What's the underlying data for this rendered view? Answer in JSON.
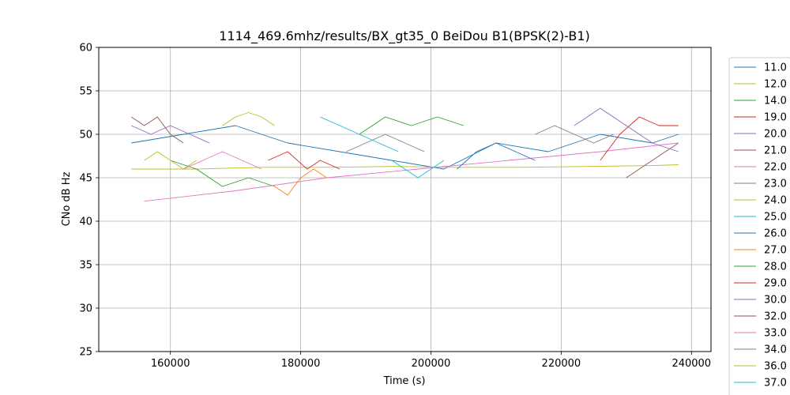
{
  "chart_data": {
    "type": "line",
    "title": "1114_469.6mhz/results/BX_gt35_0 BeiDou B1(BPSK(2)-B1)",
    "xlabel": "Time (s)",
    "ylabel": "CNo dB Hz",
    "xlim": [
      149000,
      243000
    ],
    "ylim": [
      25,
      60
    ],
    "xticks": [
      160000,
      180000,
      200000,
      220000,
      240000
    ],
    "xtick_labels": [
      "160000",
      "180000",
      "200000",
      "220000",
      "240000"
    ],
    "yticks": [
      25,
      30,
      35,
      40,
      45,
      50,
      55,
      60
    ],
    "ytick_labels": [
      "25",
      "30",
      "35",
      "40",
      "45",
      "50",
      "55",
      "60"
    ],
    "grid": true,
    "legend_position": "right, outside plot",
    "series": [
      {
        "name": "11.0",
        "color": "#1f77b4",
        "x": [
          154000,
          162000,
          170000,
          178000,
          186000,
          194000,
          202000,
          210000,
          218000,
          226000,
          234000,
          238000
        ],
        "y": [
          49,
          50,
          51,
          49,
          48,
          47,
          46,
          49,
          48,
          50,
          49,
          50
        ]
      },
      {
        "name": "12.0",
        "color": "#bcbd22",
        "x": [
          154000,
          164000,
          174000,
          184000,
          194000,
          204000,
          214000,
          224000,
          234000,
          238000
        ],
        "y": [
          46,
          46,
          46.2,
          46.2,
          46.3,
          46.2,
          46.2,
          46.3,
          46.4,
          46.5
        ]
      },
      {
        "name": "14.0",
        "color": "#2ca02c",
        "x": [
          160000,
          164000,
          168000,
          172000,
          176000
        ],
        "y": [
          47,
          46,
          44,
          45,
          44
        ]
      },
      {
        "name": "19.0",
        "color": "#d62728",
        "x": [
          175000,
          178000,
          181000,
          183000,
          186000
        ],
        "y": [
          47,
          48,
          46,
          47,
          46
        ]
      },
      {
        "name": "20.0",
        "color": "#9467bd",
        "x": [
          154000,
          157000,
          160000,
          163000,
          166000
        ],
        "y": [
          51,
          50,
          51,
          50,
          49
        ]
      },
      {
        "name": "21.0",
        "color": "#8c564b",
        "x": [
          230000,
          232000,
          234000,
          236000,
          238000
        ],
        "y": [
          45,
          46,
          47,
          48,
          49
        ]
      },
      {
        "name": "22.0",
        "color": "#e377c2",
        "x": [
          156000,
          170000,
          184000,
          198000,
          212000,
          226000,
          238000
        ],
        "y": [
          42.3,
          43.5,
          45,
          46,
          47,
          48,
          49
        ]
      },
      {
        "name": "23.0",
        "color": "#7f7f7f",
        "x": [
          187000,
          190000,
          193000,
          196000,
          199000
        ],
        "y": [
          48,
          49,
          50,
          49,
          48
        ]
      },
      {
        "name": "24.0",
        "color": "#bcbd22",
        "x": [
          156000,
          158000,
          160000,
          162000,
          164000
        ],
        "y": [
          47,
          48,
          47,
          46,
          47
        ]
      },
      {
        "name": "25.0",
        "color": "#17becf",
        "x": [
          183000,
          186000,
          189000,
          192000,
          195000
        ],
        "y": [
          52,
          51,
          50,
          49,
          48
        ]
      },
      {
        "name": "26.0",
        "color": "#1f77b4",
        "x": [
          204000,
          207000,
          210000,
          213000,
          216000
        ],
        "y": [
          46,
          48,
          49,
          48,
          47
        ]
      },
      {
        "name": "27.0",
        "color": "#ff7f0e",
        "x": [
          176000,
          178000,
          180000,
          182000,
          184000
        ],
        "y": [
          44,
          43,
          45,
          46,
          45
        ]
      },
      {
        "name": "28.0",
        "color": "#2ca02c",
        "x": [
          189000,
          193000,
          197000,
          201000,
          205000
        ],
        "y": [
          50,
          52,
          51,
          52,
          51
        ]
      },
      {
        "name": "29.0",
        "color": "#d62728",
        "x": [
          226000,
          229000,
          232000,
          235000,
          238000
        ],
        "y": [
          47,
          50,
          52,
          51,
          51
        ]
      },
      {
        "name": "30.0",
        "color": "#9467bd",
        "x": [
          222000,
          226000,
          230000,
          234000,
          238000
        ],
        "y": [
          51,
          53,
          51,
          49,
          48
        ]
      },
      {
        "name": "32.0",
        "color": "#8c564b",
        "x": [
          154000,
          156000,
          158000,
          160000,
          162000
        ],
        "y": [
          52,
          51,
          52,
          50,
          49
        ]
      },
      {
        "name": "33.0",
        "color": "#e377c2",
        "x": [
          162000,
          165000,
          168000,
          171000,
          174000
        ],
        "y": [
          46,
          47,
          48,
          47,
          46
        ]
      },
      {
        "name": "34.0",
        "color": "#7f7f7f",
        "x": [
          216000,
          219000,
          222000,
          225000,
          228000
        ],
        "y": [
          50,
          51,
          50,
          49,
          50
        ]
      },
      {
        "name": "36.0",
        "color": "#bcbd22",
        "x": [
          168000,
          170000,
          172000,
          174000,
          176000
        ],
        "y": [
          51,
          52,
          52.5,
          52,
          51
        ]
      },
      {
        "name": "37.0",
        "color": "#17becf",
        "x": [
          194000,
          196000,
          198000,
          200000,
          202000
        ],
        "y": [
          47,
          46,
          45,
          46,
          47
        ]
      }
    ]
  }
}
